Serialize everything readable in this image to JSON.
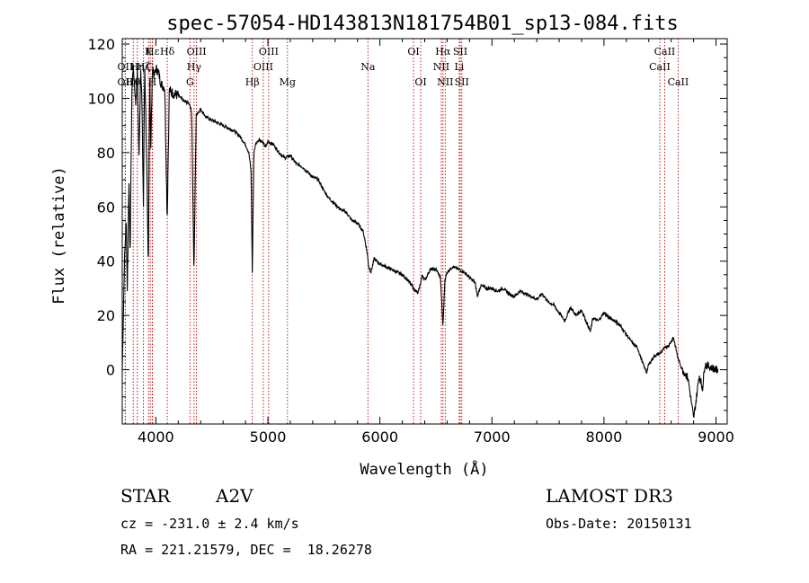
{
  "chart_data": {
    "type": "line",
    "title": "spec-57054-HD143813N181754B01_sp13-084.fits",
    "xlabel": "Wavelength (Å)",
    "ylabel": "Flux (relative)",
    "xlim": [
      3700,
      9100
    ],
    "ylim": [
      -20,
      122
    ],
    "xticks": [
      4000,
      5000,
      6000,
      7000,
      8000,
      9000
    ],
    "yticks": [
      0,
      20,
      40,
      60,
      80,
      100,
      120
    ],
    "series": [
      {
        "name": "flux",
        "x": [
          3700,
          3720,
          3735,
          3745,
          3760,
          3770,
          3785,
          3795,
          3805,
          3820,
          3835,
          3850,
          3865,
          3875,
          3889,
          3900,
          3915,
          3933,
          3945,
          3955,
          3970,
          3985,
          4000,
          4020,
          4050,
          4080,
          4101,
          4120,
          4150,
          4200,
          4250,
          4300,
          4320,
          4340,
          4360,
          4380,
          4400,
          4450,
          4500,
          4550,
          4600,
          4650,
          4700,
          4750,
          4800,
          4830,
          4850,
          4861,
          4875,
          4890,
          4920,
          4950,
          4980,
          5000,
          5050,
          5100,
          5150,
          5200,
          5250,
          5300,
          5350,
          5400,
          5450,
          5500,
          5550,
          5600,
          5650,
          5700,
          5750,
          5800,
          5850,
          5870,
          5890,
          5900,
          5920,
          5950,
          5970,
          6000,
          6050,
          6100,
          6150,
          6200,
          6250,
          6300,
          6340,
          6380,
          6400,
          6450,
          6500,
          6540,
          6563,
          6580,
          6600,
          6650,
          6700,
          6750,
          6800,
          6850,
          6870,
          6900,
          6950,
          7000,
          7050,
          7100,
          7150,
          7200,
          7250,
          7300,
          7350,
          7400,
          7450,
          7500,
          7550,
          7600,
          7650,
          7700,
          7750,
          7800,
          7850,
          7880,
          7900,
          7950,
          8000,
          8050,
          8100,
          8150,
          8200,
          8250,
          8300,
          8350,
          8380,
          8400,
          8450,
          8498,
          8542,
          8580,
          8620,
          8662,
          8700,
          8750,
          8800,
          8820,
          8850,
          8880,
          8900,
          8950,
          9000
        ],
        "y": [
          0,
          40,
          55,
          30,
          70,
          40,
          100,
          112,
          108,
          98,
          110,
          78,
          112,
          100,
          60,
          113,
          85,
          35,
          110,
          82,
          112,
          108,
          111,
          110,
          105,
          104,
          55,
          103,
          102,
          101,
          99,
          98,
          95,
          35,
          94,
          95,
          96,
          93,
          92,
          91,
          90,
          89,
          88,
          86,
          83,
          80,
          73,
          36,
          80,
          83,
          85,
          84,
          82,
          84,
          83,
          80,
          78,
          79,
          76,
          75,
          73,
          71,
          70,
          66,
          63,
          61,
          59,
          58,
          55,
          54,
          51,
          47,
          42,
          38,
          36,
          41,
          40,
          39,
          38,
          37,
          36,
          35,
          33,
          30,
          28,
          35,
          33,
          37,
          37,
          34,
          16,
          33,
          36,
          38,
          37,
          36,
          34,
          32,
          27,
          31,
          30,
          30,
          29,
          30,
          28,
          27,
          29,
          28,
          27,
          26,
          28,
          25,
          24,
          21,
          18,
          23,
          20,
          22,
          17,
          14,
          19,
          18,
          21,
          19,
          18,
          16,
          13,
          10,
          8,
          2,
          -1,
          2,
          5,
          6,
          8,
          9,
          12,
          4,
          0,
          -3,
          -18,
          -12,
          -2,
          -7,
          2,
          1,
          0
        ]
      }
    ],
    "lines": [
      {
        "label": "Hε",
        "x": 3970,
        "row": 0
      },
      {
        "label": "K",
        "x": 3934,
        "row": 0
      },
      {
        "label": "Hδ",
        "x": 4102,
        "row": 0
      },
      {
        "label": "OIII",
        "x": 4363,
        "row": 0
      },
      {
        "label": "OIII",
        "x": 5007,
        "row": 0
      },
      {
        "label": "OI",
        "x": 6300,
        "row": 0
      },
      {
        "label": "Hα",
        "x": 6563,
        "row": 0
      },
      {
        "label": "SII",
        "x": 6717,
        "row": 0
      },
      {
        "label": "CaII",
        "x": 8542,
        "row": 0
      },
      {
        "label": "OII",
        "x": 3727,
        "row": 1
      },
      {
        "label": "Hη",
        "x": 3835,
        "row": 1
      },
      {
        "label": "Hζ",
        "x": 3889,
        "row": 1
      },
      {
        "label": "G",
        "x": 3950,
        "row": 1
      },
      {
        "label": "Hγ",
        "x": 4341,
        "row": 1
      },
      {
        "label": "OIII",
        "x": 4959,
        "row": 1
      },
      {
        "label": "Na",
        "x": 5893,
        "row": 1
      },
      {
        "label": "NII",
        "x": 6548,
        "row": 1
      },
      {
        "label": "Li",
        "x": 6708,
        "row": 1
      },
      {
        "label": "CaII",
        "x": 8498,
        "row": 1
      },
      {
        "label": "OII",
        "x": 3727,
        "row": 2
      },
      {
        "label": "Hθ",
        "x": 3798,
        "row": 2
      },
      {
        "label": "H",
        "x": 3968,
        "row": 2
      },
      {
        "label": "G",
        "x": 4305,
        "row": 2
      },
      {
        "label": "Hβ",
        "x": 4861,
        "row": 2
      },
      {
        "label": "Mg",
        "x": 5175,
        "row": 2
      },
      {
        "label": "OI",
        "x": 6364,
        "row": 2
      },
      {
        "label": "NII",
        "x": 6583,
        "row": 2
      },
      {
        "label": "SII",
        "x": 6731,
        "row": 2
      },
      {
        "label": "CaII",
        "x": 8662,
        "row": 2
      }
    ]
  },
  "info": {
    "class": "STAR",
    "subclass": "A2V",
    "survey": "LAMOST DR3",
    "redshift": "cz = -231.0 ± 2.4 km/s",
    "obs_date": "Obs-Date: 20150131",
    "coords": "RA = 221.21579, DEC =  18.26278"
  }
}
